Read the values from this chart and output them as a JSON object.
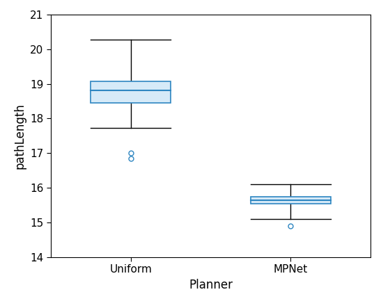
{
  "categories": [
    "Uniform",
    "MPNet"
  ],
  "xlabel": "Planner",
  "ylabel": "pathLength",
  "ylim": [
    14,
    21
  ],
  "yticks": [
    14,
    15,
    16,
    17,
    18,
    19,
    20,
    21
  ],
  "box_data": {
    "Uniform": {
      "median": 18.82,
      "q1": 18.45,
      "q3": 19.08,
      "whisker_low": 17.72,
      "whisker_high": 20.28,
      "outliers": [
        17.01,
        16.85
      ]
    },
    "MPNet": {
      "median": 15.63,
      "q1": 15.53,
      "q3": 15.73,
      "whisker_low": 15.1,
      "whisker_high": 16.1,
      "outliers": [
        14.9
      ]
    }
  },
  "box_fill_color": "#d6eaf8",
  "box_edge_color": "#2e86c1",
  "median_color": "#2e86c1",
  "whisker_color": "black",
  "outlier_color": "#2e86c1",
  "background_color": "white",
  "box_width": 0.5,
  "positions": [
    1,
    2
  ],
  "xlim": [
    0.5,
    2.5
  ]
}
